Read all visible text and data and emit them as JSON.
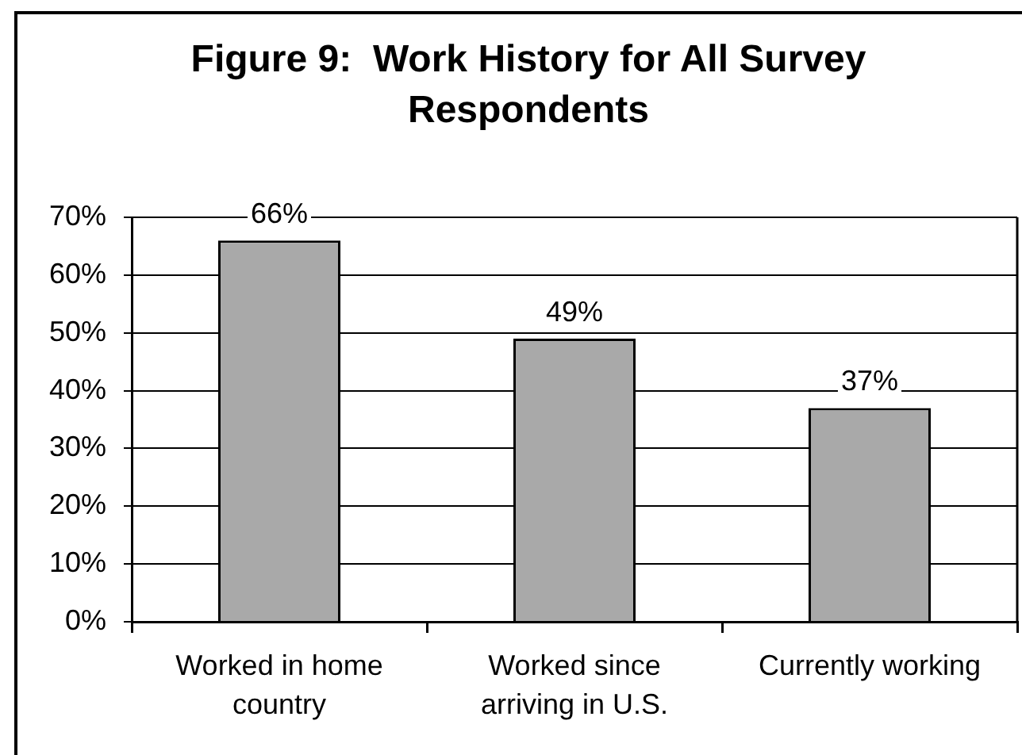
{
  "chart_data": {
    "type": "bar",
    "title": "Figure 9:  Work History for All Survey Respondents",
    "categories": [
      "Worked in home country",
      "Worked since arriving in U.S.",
      "Currently working"
    ],
    "values": [
      66,
      49,
      37
    ],
    "color": "#a9a9a9",
    "value_labels": [
      "66%",
      "49%",
      "37%"
    ],
    "ylim": [
      0,
      70
    ],
    "yticks": [
      {
        "value": 0,
        "label": "0%"
      },
      {
        "value": 10,
        "label": "10%"
      },
      {
        "value": 20,
        "label": "20%"
      },
      {
        "value": 30,
        "label": "30%"
      },
      {
        "value": 40,
        "label": "40%"
      },
      {
        "value": 50,
        "label": "50%"
      },
      {
        "value": 60,
        "label": "60%"
      },
      {
        "value": 70,
        "label": "70%"
      }
    ],
    "grid": "y"
  }
}
